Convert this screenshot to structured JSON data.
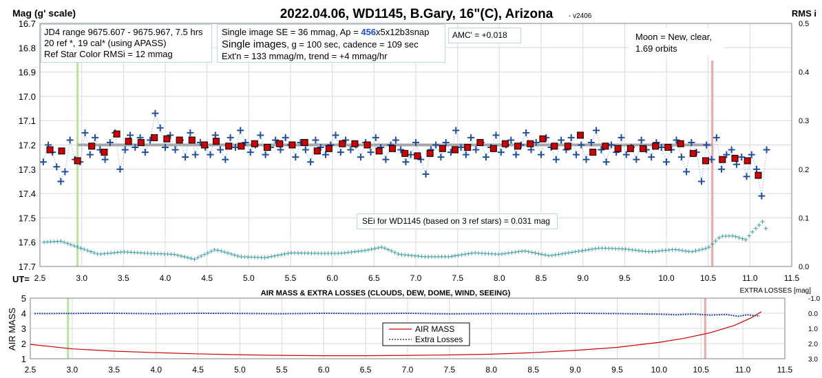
{
  "chart_data": [
    {
      "type": "scatter",
      "title": "2022.04.06, WD1145, B.Gary, 16\"(C), Arizona",
      "version": "- v2406",
      "ylabel": "Mag (g' scale)",
      "y2label": "RMS i",
      "xlabel": "UT=",
      "xlim": [
        2.5,
        11.5
      ],
      "ylim": [
        17.7,
        16.7
      ],
      "y2lim": [
        0.0,
        0.5
      ],
      "y_reversed": true,
      "grid": true,
      "xticks": [
        "2.5",
        "3.0",
        "3.5",
        "4.0",
        "4.5",
        "5.0",
        "5.5",
        "6.0",
        "6.5",
        "7.0",
        "7.5",
        "8.0",
        "8.5",
        "9.0",
        "9.5",
        "10.0",
        "10.5",
        "11.0",
        "11.5"
      ],
      "yticks": [
        "16.7",
        "16.8",
        "16.9",
        "17.0",
        "17.1",
        "17.2",
        "17.3",
        "17.4",
        "17.5",
        "17.6",
        "17.7"
      ],
      "y2ticks": [
        "0.5",
        "0.4",
        "0.3",
        "0.2",
        "0.1",
        "0.0"
      ],
      "vertical_markers": [
        {
          "x": 2.95,
          "color": "#b7e39a"
        },
        {
          "x": 10.55,
          "color": "#f4a6a6"
        }
      ],
      "annotations": {
        "info1": [
          "JD4 range 9675.607 - 9675.967, 7.5 hrs",
          "20 ref *, 19 cal* (using APASS)",
          "Ref Star Color RMSi = 12 mmag"
        ],
        "info2_line1_pre": "Single image SE = 36 mmag, Ap = ",
        "info2_line1_ap": "456",
        "info2_line1_post": "x5x12b3snap",
        "info2_line2_big": "Single images",
        "info2_line2_rest": ", g = 100 sec, cadence = 109 sec",
        "info2_line3": "Ext'n = 133 mmag/m, trend = +4 mmag/hr",
        "amc": "AMC' = +0.018",
        "moon": [
          "Moon = New, clear,",
          "1.69 orbits"
        ],
        "sei": "SEi for WD1145 (based on 3 ref stars) = 0.031 mag"
      },
      "trend_line": {
        "x": [
          2.95,
          10.55
        ],
        "y": [
          17.2,
          17.2
        ],
        "color": "#a6a6a6"
      },
      "series": [
        {
          "name": "binned",
          "color": "#d00000",
          "x": [
            2.62,
            2.76,
            2.95,
            3.12,
            3.27,
            3.42,
            3.56,
            3.71,
            3.87,
            4.02,
            4.17,
            4.32,
            4.47,
            4.61,
            4.76,
            4.91,
            5.07,
            5.22,
            5.37,
            5.52,
            5.67,
            5.82,
            5.96,
            6.12,
            6.27,
            6.42,
            6.56,
            6.72,
            6.87,
            7.02,
            7.17,
            7.32,
            7.47,
            7.62,
            7.77,
            7.93,
            8.07,
            8.22,
            8.37,
            8.52,
            8.66,
            8.82,
            8.97,
            9.12,
            9.27,
            9.42,
            9.57,
            9.72,
            9.87,
            10.02,
            10.17,
            10.32,
            10.47,
            10.67,
            10.82,
            10.97,
            11.1
          ],
          "y": [
            17.22,
            17.225,
            17.265,
            17.205,
            17.23,
            17.155,
            17.185,
            17.19,
            17.17,
            17.175,
            17.18,
            17.18,
            17.2,
            17.185,
            17.205,
            17.205,
            17.195,
            17.21,
            17.195,
            17.2,
            17.19,
            17.225,
            17.215,
            17.195,
            17.195,
            17.2,
            17.225,
            17.215,
            17.235,
            17.245,
            17.235,
            17.215,
            17.22,
            17.21,
            17.19,
            17.215,
            17.195,
            17.205,
            17.195,
            17.175,
            17.205,
            17.205,
            17.16,
            17.23,
            17.205,
            17.215,
            17.215,
            17.215,
            17.205,
            17.21,
            17.195,
            17.235,
            17.265,
            17.26,
            17.255,
            17.265,
            17.325
          ]
        },
        {
          "name": "single",
          "color": "#1f4ea0",
          "x": [
            2.54,
            2.6,
            2.65,
            2.7,
            2.75,
            2.8,
            2.86,
            2.92,
            2.98,
            3.04,
            3.1,
            3.16,
            3.22,
            3.28,
            3.34,
            3.4,
            3.46,
            3.52,
            3.58,
            3.64,
            3.7,
            3.76,
            3.82,
            3.88,
            3.94,
            4.0,
            4.06,
            4.12,
            4.18,
            4.24,
            4.3,
            4.36,
            4.42,
            4.48,
            4.54,
            4.6,
            4.66,
            4.72,
            4.78,
            4.84,
            4.9,
            4.96,
            5.02,
            5.08,
            5.14,
            5.2,
            5.26,
            5.32,
            5.38,
            5.44,
            5.5,
            5.56,
            5.62,
            5.68,
            5.74,
            5.8,
            5.86,
            5.92,
            5.98,
            6.04,
            6.1,
            6.16,
            6.22,
            6.28,
            6.34,
            6.4,
            6.46,
            6.52,
            6.58,
            6.64,
            6.7,
            6.76,
            6.82,
            6.88,
            6.94,
            7.0,
            7.06,
            7.12,
            7.18,
            7.24,
            7.3,
            7.36,
            7.42,
            7.48,
            7.54,
            7.6,
            7.66,
            7.72,
            7.78,
            7.84,
            7.9,
            7.96,
            8.02,
            8.08,
            8.14,
            8.2,
            8.26,
            8.32,
            8.38,
            8.44,
            8.5,
            8.56,
            8.62,
            8.68,
            8.74,
            8.8,
            8.86,
            8.92,
            8.98,
            9.04,
            9.1,
            9.16,
            9.22,
            9.28,
            9.34,
            9.4,
            9.46,
            9.52,
            9.58,
            9.64,
            9.7,
            9.76,
            9.82,
            9.88,
            9.94,
            10.0,
            10.06,
            10.12,
            10.18,
            10.24,
            10.3,
            10.36,
            10.42,
            10.48,
            10.54,
            10.6,
            10.66,
            10.72,
            10.78,
            10.84,
            10.9,
            10.96,
            11.02,
            11.08,
            11.14,
            11.2
          ],
          "y": [
            17.27,
            17.2,
            17.23,
            17.29,
            17.35,
            17.31,
            17.18,
            17.26,
            17.27,
            17.15,
            17.24,
            17.17,
            17.22,
            17.26,
            17.19,
            17.15,
            17.3,
            17.22,
            17.16,
            17.21,
            17.17,
            17.23,
            17.18,
            17.07,
            17.13,
            17.21,
            17.16,
            17.22,
            17.18,
            17.25,
            17.15,
            17.24,
            17.19,
            17.21,
            17.24,
            17.16,
            17.22,
            17.26,
            17.17,
            17.21,
            17.14,
            17.19,
            17.23,
            17.2,
            17.16,
            17.24,
            17.21,
            17.18,
            17.22,
            17.17,
            17.2,
            17.25,
            17.19,
            17.22,
            17.27,
            17.18,
            17.21,
            17.24,
            17.2,
            17.16,
            17.23,
            17.18,
            17.22,
            17.2,
            17.25,
            17.19,
            17.23,
            17.17,
            17.21,
            17.26,
            17.2,
            17.18,
            17.22,
            17.27,
            17.24,
            17.19,
            17.26,
            17.32,
            17.22,
            17.2,
            17.25,
            17.19,
            17.23,
            17.14,
            17.21,
            17.24,
            17.17,
            17.22,
            17.19,
            17.25,
            17.21,
            17.16,
            17.23,
            17.2,
            17.18,
            17.24,
            17.2,
            17.15,
            17.22,
            17.19,
            17.24,
            17.17,
            17.21,
            17.26,
            17.18,
            17.22,
            17.17,
            17.24,
            17.2,
            17.26,
            17.19,
            17.14,
            17.22,
            17.27,
            17.2,
            17.23,
            17.17,
            17.24,
            17.21,
            17.26,
            17.18,
            17.22,
            17.25,
            17.19,
            17.21,
            17.27,
            17.22,
            17.18,
            17.25,
            17.31,
            17.19,
            17.23,
            17.35,
            17.2,
            17.26,
            17.17,
            17.3,
            17.24,
            17.22,
            17.28,
            17.25,
            17.33,
            17.24,
            17.3,
            17.41,
            17.22
          ]
        },
        {
          "name": "RMSi",
          "axis": "y2",
          "color": "#3a9ea0",
          "x": [
            2.55,
            2.75,
            2.95,
            3.2,
            3.5,
            3.8,
            4.1,
            4.35,
            4.6,
            4.9,
            5.2,
            5.5,
            5.8,
            6.1,
            6.4,
            6.6,
            6.8,
            7.1,
            7.4,
            7.7,
            8.0,
            8.3,
            8.6,
            8.9,
            9.2,
            9.5,
            9.8,
            10.1,
            10.3,
            10.5,
            10.65,
            10.8,
            10.95,
            11.05,
            11.15,
            11.22
          ],
          "y": [
            0.05,
            0.052,
            0.04,
            0.025,
            0.03,
            0.027,
            0.025,
            0.015,
            0.035,
            0.02,
            0.018,
            0.028,
            0.027,
            0.027,
            0.033,
            0.04,
            0.025,
            0.02,
            0.02,
            0.028,
            0.025,
            0.032,
            0.022,
            0.03,
            0.038,
            0.036,
            0.03,
            0.035,
            0.03,
            0.038,
            0.062,
            0.063,
            0.055,
            0.075,
            0.092,
            0.068
          ]
        }
      ]
    },
    {
      "type": "line",
      "title": "AIR MASS & EXTRA LOSSES (CLOUDS, DEW, DOME, WIND, SEEING)",
      "ylabel": "AIR MASS",
      "y2label": "EXTRA LOSSES [mag]",
      "xlim": [
        2.5,
        11.5
      ],
      "ylim": [
        1,
        5
      ],
      "y2lim": [
        3.0,
        -1.0
      ],
      "grid": true,
      "xticks": [
        "2.5",
        "3.0",
        "3.5",
        "4.0",
        "4.5",
        "5.0",
        "5.5",
        "6.0",
        "6.5",
        "7.0",
        "7.5",
        "8.0",
        "8.5",
        "9.0",
        "9.5",
        "10.0",
        "10.5",
        "11.0",
        "11.5"
      ],
      "yticks": [
        "1",
        "2",
        "3",
        "4",
        "5"
      ],
      "y2ticks": [
        "-1.0",
        "0.0",
        "1.0",
        "2.0",
        "3.0"
      ],
      "legend": "center",
      "vertical_markers": [
        {
          "x": 2.95,
          "color": "#b7e39a"
        },
        {
          "x": 10.55,
          "color": "#f4a6a6"
        }
      ],
      "series": [
        {
          "name": "AIR MASS",
          "color": "#d00000",
          "x": [
            2.5,
            3.0,
            3.5,
            4.0,
            4.5,
            5.0,
            5.5,
            6.0,
            6.5,
            7.0,
            7.5,
            8.0,
            8.5,
            9.0,
            9.5,
            10.0,
            10.3,
            10.6,
            10.9,
            11.1,
            11.22
          ],
          "y": [
            1.95,
            1.65,
            1.5,
            1.4,
            1.32,
            1.26,
            1.22,
            1.2,
            1.2,
            1.22,
            1.25,
            1.3,
            1.4,
            1.55,
            1.75,
            2.08,
            2.35,
            2.7,
            3.2,
            3.7,
            4.1
          ]
        },
        {
          "name": "Extra Losses",
          "axis": "y2",
          "color": "#1f3fa0",
          "x": [
            2.55,
            3.0,
            3.5,
            4.0,
            4.5,
            5.0,
            5.5,
            6.0,
            6.5,
            7.0,
            7.5,
            8.0,
            8.5,
            9.0,
            9.5,
            10.0,
            10.2,
            10.4,
            10.6,
            10.8,
            10.95,
            11.05,
            11.2
          ],
          "y": [
            0.02,
            0.01,
            0.0,
            0.03,
            0.0,
            0.01,
            0.03,
            0.0,
            0.02,
            0.0,
            0.04,
            0.02,
            0.03,
            0.0,
            0.02,
            0.06,
            0.1,
            0.05,
            0.12,
            0.08,
            0.2,
            0.1,
            0.18
          ]
        }
      ]
    }
  ]
}
